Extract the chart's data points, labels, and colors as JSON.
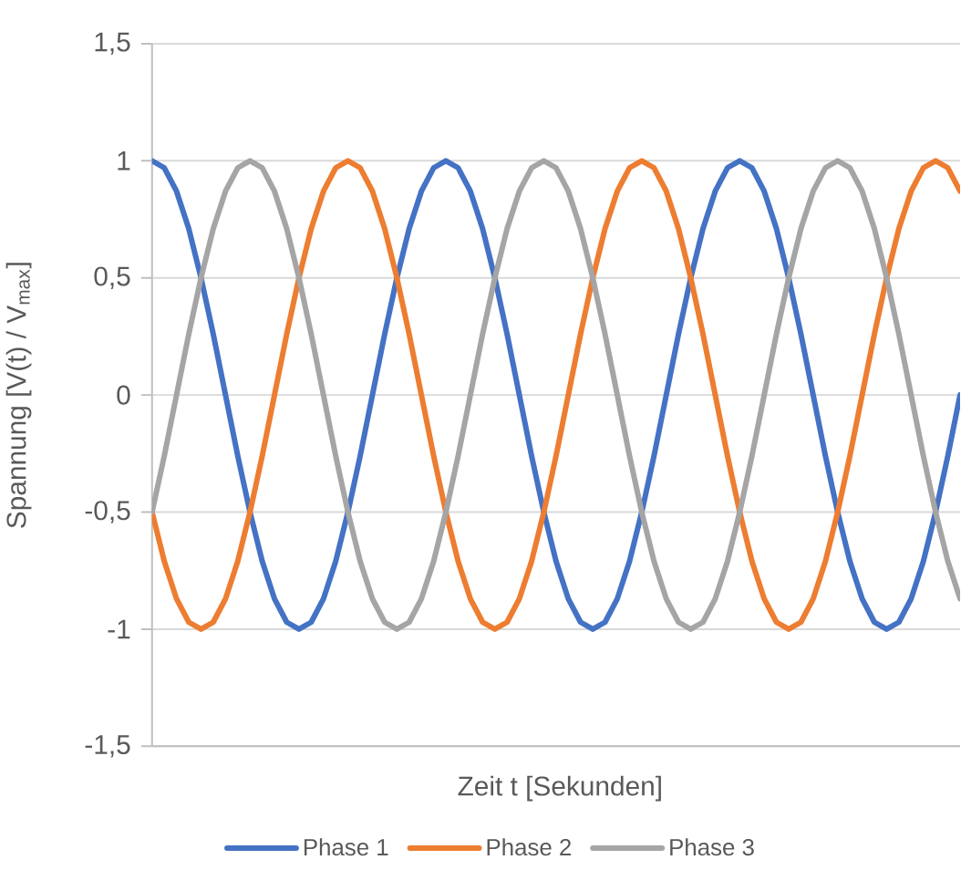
{
  "chart_data": {
    "type": "line",
    "xlabel": "Zeit t [Sekunden]",
    "ylabel": "Spannung [V(t) / V$_{max}$]",
    "categories": [
      null,
      null,
      null,
      null,
      null,
      null,
      null,
      null,
      null,
      null,
      null,
      null,
      null,
      null,
      null,
      null,
      null,
      null,
      null,
      null,
      null,
      null,
      null,
      null,
      null,
      null,
      null,
      null,
      null,
      null,
      null,
      null,
      null,
      null,
      null,
      null,
      null,
      null,
      null,
      null,
      null,
      null,
      null,
      null,
      null,
      null,
      null,
      null,
      null,
      null,
      null,
      null,
      null,
      null,
      null,
      null,
      null,
      null,
      null,
      null,
      null,
      null,
      null,
      null,
      null,
      null,
      null
    ],
    "series": [
      {
        "name": "Phase 1",
        "color": "#4472c4",
        "values": [
          1,
          0.97,
          0.87,
          0.71,
          0.5,
          0.26,
          0,
          -0.26,
          -0.5,
          -0.71,
          -0.87,
          -0.97,
          -1,
          -0.97,
          -0.87,
          -0.71,
          -0.5,
          -0.26,
          0,
          0.26,
          0.5,
          0.71,
          0.87,
          0.97,
          1,
          0.97,
          0.87,
          0.71,
          0.5,
          0.26,
          0,
          -0.26,
          -0.5,
          -0.71,
          -0.87,
          -0.97,
          -1,
          -0.97,
          -0.87,
          -0.71,
          -0.5,
          -0.26,
          0,
          0.26,
          0.5,
          0.71,
          0.87,
          0.97,
          1,
          0.97,
          0.87,
          0.71,
          0.5,
          0.26,
          0,
          -0.26,
          -0.5,
          -0.71,
          -0.87,
          -0.97,
          -1,
          -0.97,
          -0.87,
          -0.71,
          -0.5,
          -0.26,
          0
        ]
      },
      {
        "name": "Phase 2",
        "color": "#ed7d31",
        "values": [
          -0.5,
          -0.71,
          -0.87,
          -0.97,
          -1,
          -0.97,
          -0.87,
          -0.71,
          -0.5,
          -0.26,
          0,
          0.26,
          0.5,
          0.71,
          0.87,
          0.97,
          1,
          0.97,
          0.87,
          0.71,
          0.5,
          0.26,
          0,
          -0.26,
          -0.5,
          -0.71,
          -0.87,
          -0.97,
          -1,
          -0.97,
          -0.87,
          -0.71,
          -0.5,
          -0.26,
          0,
          0.26,
          0.5,
          0.71,
          0.87,
          0.97,
          1,
          0.97,
          0.87,
          0.71,
          0.5,
          0.26,
          0,
          -0.26,
          -0.5,
          -0.71,
          -0.87,
          -0.97,
          -1,
          -0.97,
          -0.87,
          -0.71,
          -0.5,
          -0.26,
          0,
          0.26,
          0.5,
          0.71,
          0.87,
          0.97,
          1,
          0.97,
          0.87
        ]
      },
      {
        "name": "Phase 3",
        "color": "#a5a5a5",
        "values": [
          -0.5,
          -0.26,
          0,
          0.26,
          0.5,
          0.71,
          0.87,
          0.97,
          1,
          0.97,
          0.87,
          0.71,
          0.5,
          0.26,
          0,
          -0.26,
          -0.5,
          -0.71,
          -0.87,
          -0.97,
          -1,
          -0.97,
          -0.87,
          -0.71,
          -0.5,
          -0.26,
          0,
          0.26,
          0.5,
          0.71,
          0.87,
          0.97,
          1,
          0.97,
          0.87,
          0.71,
          0.5,
          0.26,
          0,
          -0.26,
          -0.5,
          -0.71,
          -0.87,
          -0.97,
          -1,
          -0.97,
          -0.87,
          -0.71,
          -0.5,
          -0.26,
          0,
          0.26,
          0.5,
          0.71,
          0.87,
          0.97,
          1,
          0.97,
          0.87,
          0.71,
          0.5,
          0.26,
          0,
          -0.26,
          -0.5,
          -0.71,
          -0.87
        ]
      }
    ],
    "ylim": [
      -1.5,
      1.5
    ],
    "yticks": [
      {
        "value": -1.5,
        "label": "-1,5"
      },
      {
        "value": -1,
        "label": "-1"
      },
      {
        "value": -0.5,
        "label": "-0,5"
      },
      {
        "value": 0,
        "label": "0"
      },
      {
        "value": 0.5,
        "label": "0,5"
      },
      {
        "value": 1,
        "label": "1"
      },
      {
        "value": 1.5,
        "label": "1,5"
      }
    ],
    "grid": "y",
    "legend": "bottom",
    "line_style": "solid"
  }
}
